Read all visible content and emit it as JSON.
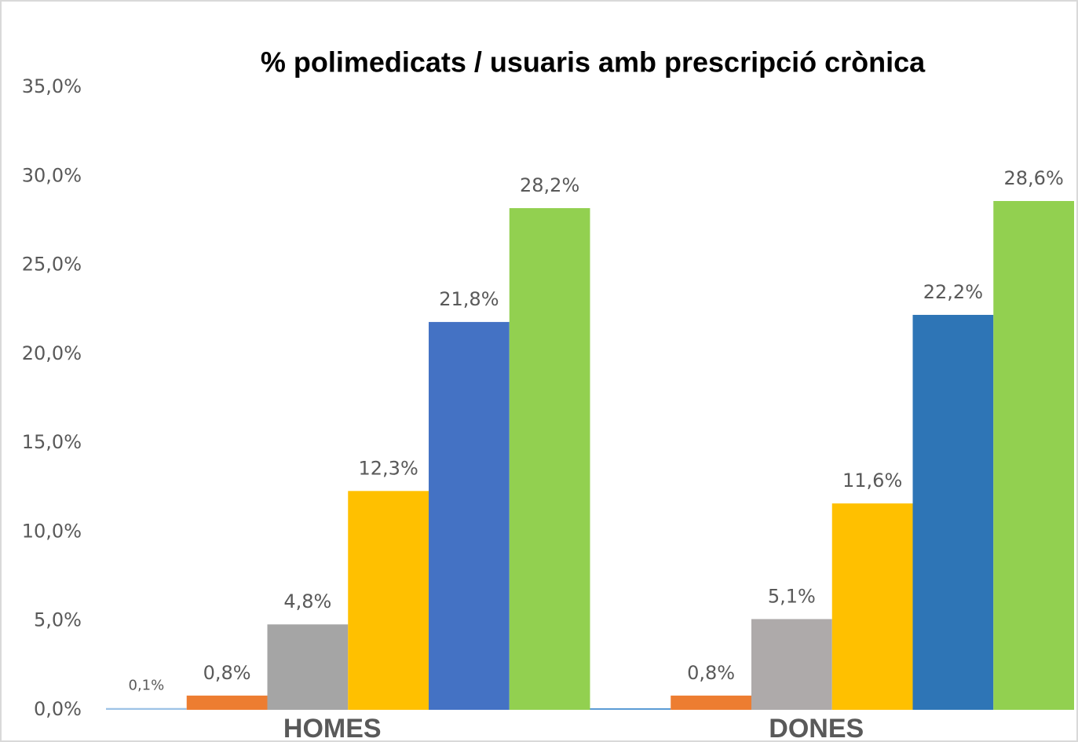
{
  "chart_data": {
    "type": "bar",
    "title": "% polimedicats / usuaris amb prescripció crònica",
    "categories": [
      "HOMES",
      "DONES"
    ],
    "series": [
      {
        "colors": [
          "#9dc3e6",
          "#5b9bd5"
        ],
        "values": [
          0.1,
          0.05
        ],
        "value_labels": [
          "0,1%",
          null
        ]
      },
      {
        "colors": [
          "#ed7d31",
          "#ed7d31"
        ],
        "values": [
          0.8,
          0.8
        ],
        "value_labels": [
          "0,8%",
          "0,8%"
        ]
      },
      {
        "colors": [
          "#a5a5a5",
          "#aeaaaa"
        ],
        "values": [
          4.8,
          5.1
        ],
        "value_labels": [
          "4,8%",
          "5,1%"
        ]
      },
      {
        "colors": [
          "#ffc000",
          "#ffc000"
        ],
        "values": [
          12.3,
          11.6
        ],
        "value_labels": [
          "12,3%",
          "11,6%"
        ]
      },
      {
        "colors": [
          "#4472c4",
          "#2e75b6"
        ],
        "values": [
          21.8,
          22.2
        ],
        "value_labels": [
          "21,8%",
          "22,2%"
        ]
      },
      {
        "colors": [
          "#92d050",
          "#92d050"
        ],
        "values": [
          28.2,
          28.6
        ],
        "value_labels": [
          "28,2%",
          "28,6%"
        ]
      }
    ],
    "ylim": [
      0,
      35
    ],
    "yticks": [
      {
        "value": 0,
        "label": "0,0%"
      },
      {
        "value": 5,
        "label": "5,0%"
      },
      {
        "value": 10,
        "label": "10,0%"
      },
      {
        "value": 15,
        "label": "15,0%"
      },
      {
        "value": 20,
        "label": "20,0%"
      },
      {
        "value": 25,
        "label": "25,0%"
      },
      {
        "value": 30,
        "label": "30,0%"
      },
      {
        "value": 35,
        "label": "35,0%"
      }
    ],
    "grid": false
  }
}
